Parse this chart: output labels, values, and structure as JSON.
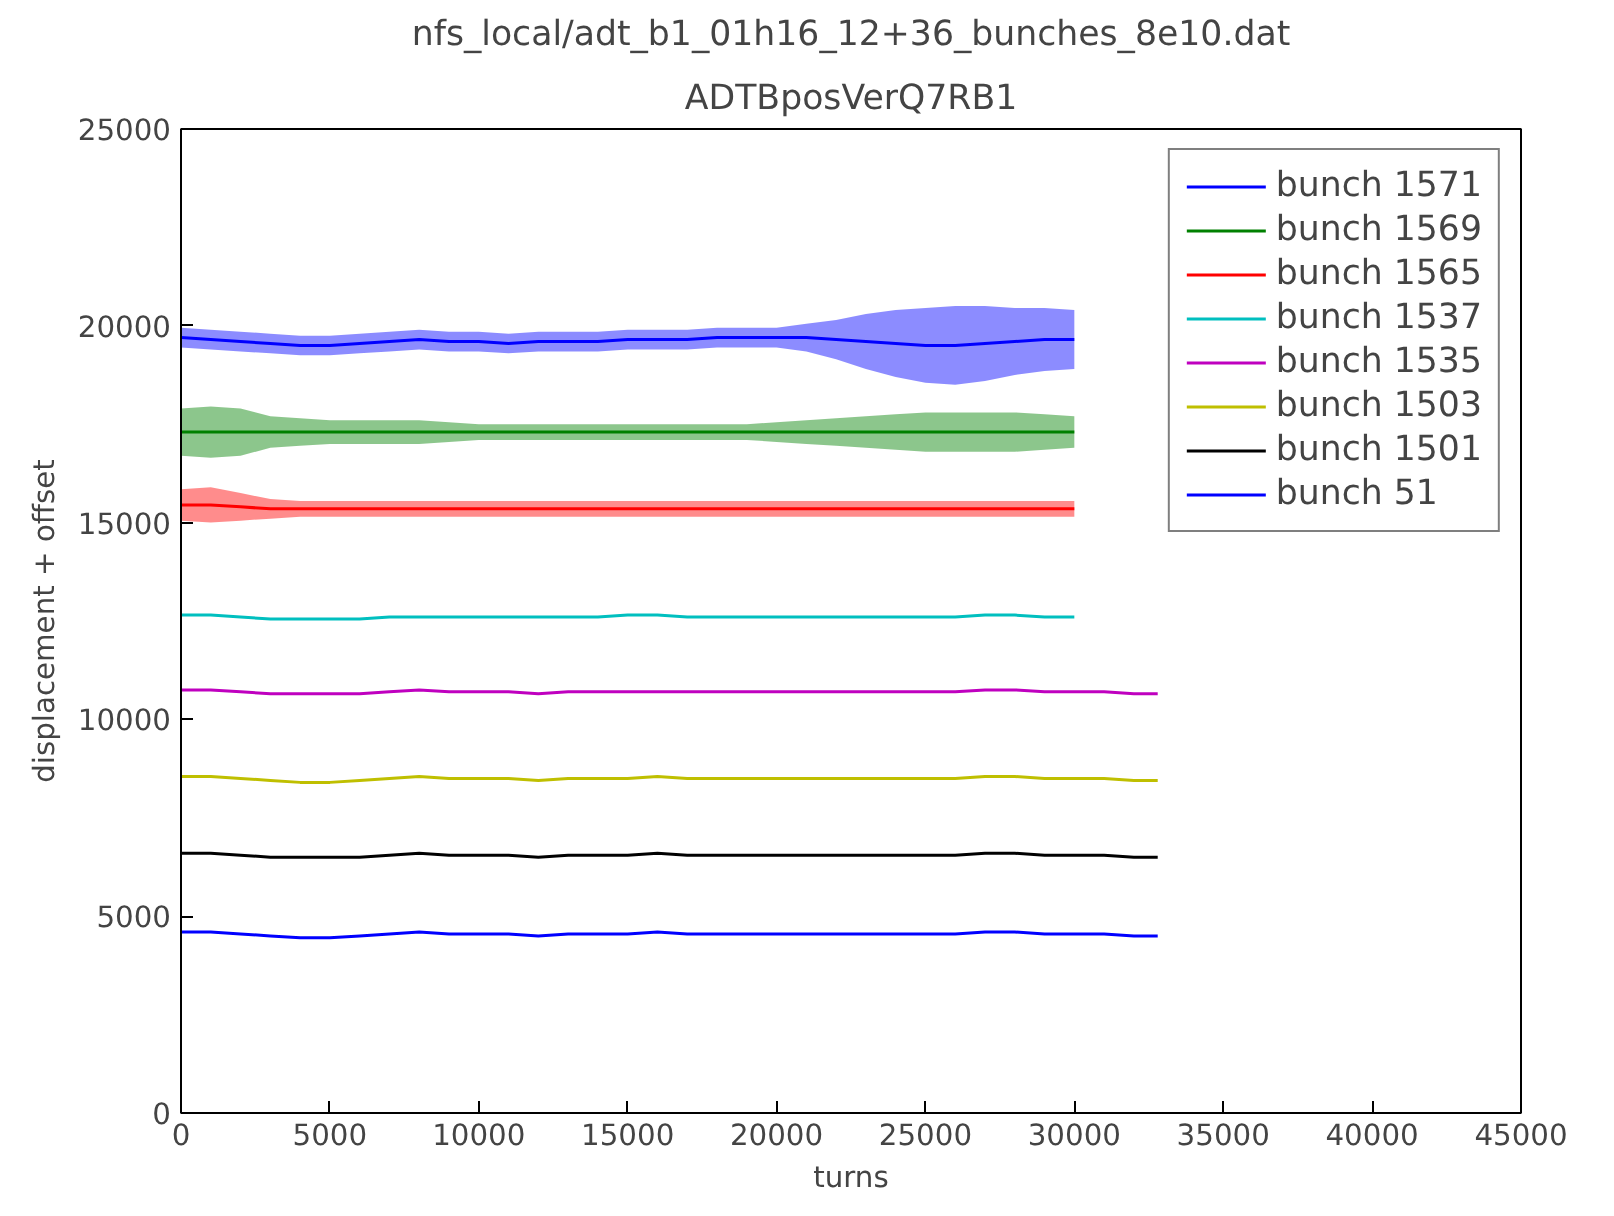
{
  "chart_data": {
    "type": "line",
    "title": "nfs_local/adt_b1_01h16_12+36_bunches_8e10.dat",
    "subtitle": "ADTBposVerQ7RB1",
    "xlabel": "turns",
    "ylabel": "displacement + offset",
    "x": [
      0,
      1000,
      2000,
      3000,
      4000,
      5000,
      6000,
      7000,
      8000,
      9000,
      10000,
      11000,
      12000,
      13000,
      14000,
      15000,
      16000,
      17000,
      18000,
      19000,
      20000,
      21000,
      22000,
      23000,
      24000,
      25000,
      26000,
      27000,
      28000,
      29000,
      30000,
      31000,
      32000,
      32800
    ],
    "xlim": [
      0,
      45000
    ],
    "ylim": [
      0,
      25000
    ],
    "xticks": [
      0,
      5000,
      10000,
      15000,
      20000,
      25000,
      30000,
      35000,
      40000,
      45000
    ],
    "yticks": [
      0,
      5000,
      10000,
      15000,
      20000,
      25000
    ],
    "grid": false,
    "legend": "top right",
    "line_style": "solid",
    "series": [
      {
        "name": "bunch 1571",
        "color": "#0000ff",
        "values": [
          19700,
          19650,
          19600,
          19550,
          19500,
          19500,
          19550,
          19600,
          19650,
          19600,
          19600,
          19550,
          19600,
          19600,
          19600,
          19650,
          19650,
          19650,
          19700,
          19700,
          19700,
          19700,
          19650,
          19600,
          19550,
          19500,
          19500,
          19550,
          19600,
          19650,
          19650,
          null,
          null,
          null
        ],
        "lower": [
          19450,
          19400,
          19350,
          19300,
          19250,
          19250,
          19300,
          19350,
          19400,
          19350,
          19350,
          19300,
          19350,
          19350,
          19350,
          19400,
          19400,
          19400,
          19450,
          19450,
          19450,
          19350,
          19150,
          18900,
          18700,
          18550,
          18500,
          18600,
          18750,
          18850,
          18900,
          null,
          null,
          null
        ],
        "upper": [
          19950,
          19900,
          19850,
          19800,
          19750,
          19750,
          19800,
          19850,
          19900,
          19850,
          19850,
          19800,
          19850,
          19850,
          19850,
          19900,
          19900,
          19900,
          19950,
          19950,
          19950,
          20050,
          20150,
          20300,
          20400,
          20450,
          20500,
          20500,
          20450,
          20450,
          20400,
          null,
          null,
          null
        ]
      },
      {
        "name": "bunch 1569",
        "color": "#008000",
        "values": [
          17300,
          17300,
          17300,
          17300,
          17300,
          17300,
          17300,
          17300,
          17300,
          17300,
          17300,
          17300,
          17300,
          17300,
          17300,
          17300,
          17300,
          17300,
          17300,
          17300,
          17300,
          17300,
          17300,
          17300,
          17300,
          17300,
          17300,
          17300,
          17300,
          17300,
          17300,
          null,
          null,
          null
        ],
        "lower": [
          16700,
          16650,
          16700,
          16900,
          16950,
          17000,
          17000,
          17000,
          17000,
          17050,
          17100,
          17100,
          17100,
          17100,
          17100,
          17100,
          17100,
          17100,
          17100,
          17100,
          17050,
          17000,
          16950,
          16900,
          16850,
          16800,
          16800,
          16800,
          16800,
          16850,
          16900,
          null,
          null,
          null
        ],
        "upper": [
          17900,
          17950,
          17900,
          17700,
          17650,
          17600,
          17600,
          17600,
          17600,
          17550,
          17500,
          17500,
          17500,
          17500,
          17500,
          17500,
          17500,
          17500,
          17500,
          17500,
          17550,
          17600,
          17650,
          17700,
          17750,
          17800,
          17800,
          17800,
          17800,
          17750,
          17700,
          null,
          null,
          null
        ]
      },
      {
        "name": "bunch 1565",
        "color": "#ff0000",
        "values": [
          15450,
          15450,
          15400,
          15350,
          15350,
          15350,
          15350,
          15350,
          15350,
          15350,
          15350,
          15350,
          15350,
          15350,
          15350,
          15350,
          15350,
          15350,
          15350,
          15350,
          15350,
          15350,
          15350,
          15350,
          15350,
          15350,
          15350,
          15350,
          15350,
          15350,
          15350,
          null,
          null,
          null
        ],
        "lower": [
          15050,
          15000,
          15050,
          15100,
          15150,
          15150,
          15150,
          15150,
          15150,
          15150,
          15150,
          15150,
          15150,
          15150,
          15150,
          15150,
          15150,
          15150,
          15150,
          15150,
          15150,
          15150,
          15150,
          15150,
          15150,
          15150,
          15150,
          15150,
          15150,
          15150,
          15150,
          null,
          null,
          null
        ],
        "upper": [
          15850,
          15900,
          15750,
          15600,
          15550,
          15550,
          15550,
          15550,
          15550,
          15550,
          15550,
          15550,
          15550,
          15550,
          15550,
          15550,
          15550,
          15550,
          15550,
          15550,
          15550,
          15550,
          15550,
          15550,
          15550,
          15550,
          15550,
          15550,
          15550,
          15550,
          15550,
          null,
          null,
          null
        ]
      },
      {
        "name": "bunch 1537",
        "color": "#00bfbf",
        "values": [
          12650,
          12650,
          12600,
          12550,
          12550,
          12550,
          12550,
          12600,
          12600,
          12600,
          12600,
          12600,
          12600,
          12600,
          12600,
          12650,
          12650,
          12600,
          12600,
          12600,
          12600,
          12600,
          12600,
          12600,
          12600,
          12600,
          12600,
          12650,
          12650,
          12600,
          12600,
          null,
          null,
          null
        ]
      },
      {
        "name": "bunch 1535",
        "color": "#bf00bf",
        "values": [
          10750,
          10750,
          10700,
          10650,
          10650,
          10650,
          10650,
          10700,
          10750,
          10700,
          10700,
          10700,
          10650,
          10700,
          10700,
          10700,
          10700,
          10700,
          10700,
          10700,
          10700,
          10700,
          10700,
          10700,
          10700,
          10700,
          10700,
          10750,
          10750,
          10700,
          10700,
          10700,
          10650,
          10650
        ]
      },
      {
        "name": "bunch 1503",
        "color": "#bfbf00",
        "values": [
          8550,
          8550,
          8500,
          8450,
          8400,
          8400,
          8450,
          8500,
          8550,
          8500,
          8500,
          8500,
          8450,
          8500,
          8500,
          8500,
          8550,
          8500,
          8500,
          8500,
          8500,
          8500,
          8500,
          8500,
          8500,
          8500,
          8500,
          8550,
          8550,
          8500,
          8500,
          8500,
          8450,
          8450
        ]
      },
      {
        "name": "bunch 1501",
        "color": "#000000",
        "values": [
          6600,
          6600,
          6550,
          6500,
          6500,
          6500,
          6500,
          6550,
          6600,
          6550,
          6550,
          6550,
          6500,
          6550,
          6550,
          6550,
          6600,
          6550,
          6550,
          6550,
          6550,
          6550,
          6550,
          6550,
          6550,
          6550,
          6550,
          6600,
          6600,
          6550,
          6550,
          6550,
          6500,
          6500
        ]
      },
      {
        "name": "bunch 51",
        "color": "#0000ff",
        "values": [
          4600,
          4600,
          4550,
          4500,
          4450,
          4450,
          4500,
          4550,
          4600,
          4550,
          4550,
          4550,
          4500,
          4550,
          4550,
          4550,
          4600,
          4550,
          4550,
          4550,
          4550,
          4550,
          4550,
          4550,
          4550,
          4550,
          4550,
          4600,
          4600,
          4550,
          4550,
          4550,
          4500,
          4500
        ]
      }
    ]
  }
}
